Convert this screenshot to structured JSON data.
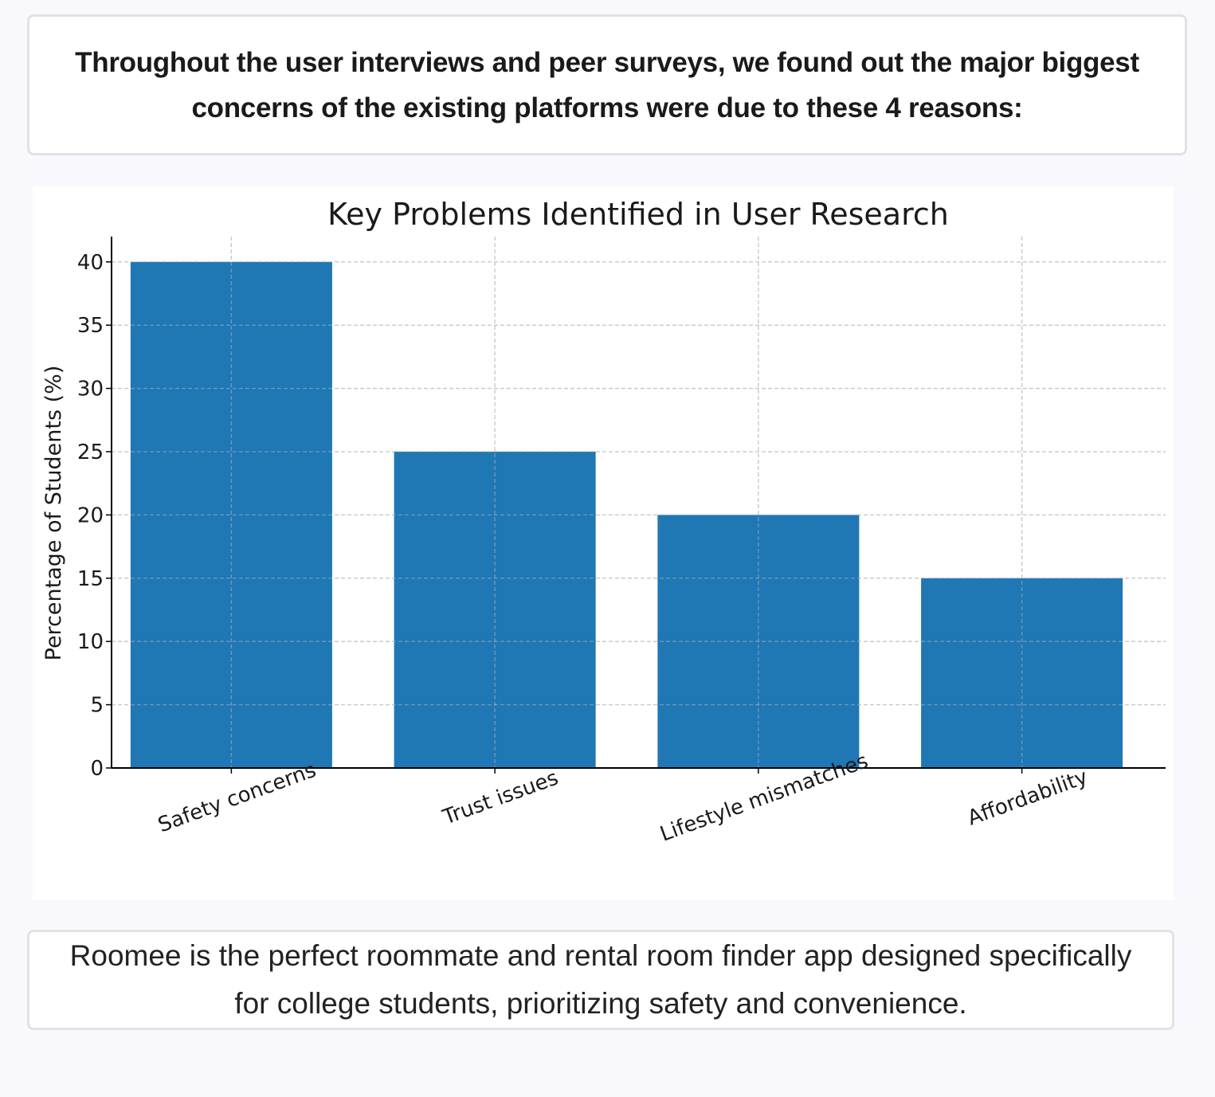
{
  "intro": {
    "text": "Throughout the user interviews and peer surveys, we found out the major biggest concerns of the existing platforms were due to these 4 reasons:"
  },
  "summary": {
    "text": "Roomee is the perfect roommate and rental room finder app designed specifically for college students, prioritizing safety and convenience."
  },
  "colors": {
    "bar": "#1f77b4",
    "grid": "#c8c8c8",
    "axis": "#000000"
  },
  "chart_data": {
    "type": "bar",
    "title": "Key Problems Identified in User Research",
    "xlabel": "",
    "ylabel": "Percentage of Students (%)",
    "categories": [
      "Safety concerns",
      "Trust issues",
      "Lifestyle mismatches",
      "Affordability"
    ],
    "values": [
      40,
      25,
      20,
      15
    ],
    "ylim": [
      0,
      42
    ],
    "yticks": [
      0,
      5,
      10,
      15,
      20,
      25,
      30,
      35,
      40
    ],
    "grid": true,
    "xtick_rotation": -20
  }
}
